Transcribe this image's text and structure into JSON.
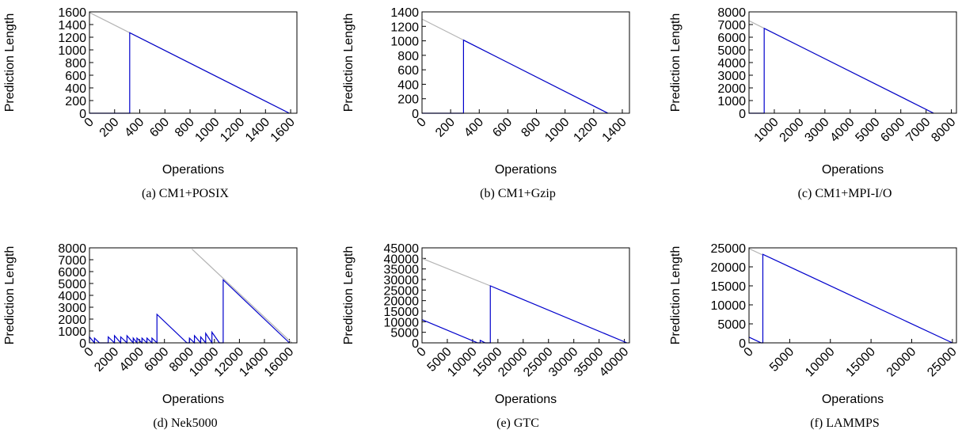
{
  "chart_data": [
    {
      "type": "line",
      "caption": "(a) CM1+POSIX",
      "xlabel": "Operations",
      "ylabel": "Prediction Length",
      "xlim": [
        0,
        1650
      ],
      "ylim": [
        0,
        1600
      ],
      "xticks": [
        0,
        200,
        400,
        600,
        800,
        1000,
        1200,
        1400,
        1600
      ],
      "yticks": [
        0,
        200,
        400,
        600,
        800,
        1000,
        1200,
        1400,
        1600
      ],
      "series": [
        {
          "color": "#b4b4b4",
          "x": [
            0,
            1590
          ],
          "values": [
            1590,
            0
          ]
        },
        {
          "color": "#0000cc",
          "x": [
            0,
            320,
            320,
            1590
          ],
          "values": [
            0,
            0,
            1270,
            0
          ]
        }
      ]
    },
    {
      "type": "line",
      "caption": "(b) CM1+Gzip",
      "xlabel": "Operations",
      "ylabel": "Prediction Length",
      "xlim": [
        0,
        1450
      ],
      "ylim": [
        0,
        1400
      ],
      "xticks": [
        0,
        200,
        400,
        600,
        800,
        1000,
        1200,
        1400
      ],
      "yticks": [
        0,
        200,
        400,
        600,
        800,
        1000,
        1200,
        1400
      ],
      "series": [
        {
          "color": "#b4b4b4",
          "x": [
            0,
            1300
          ],
          "values": [
            1300,
            0
          ]
        },
        {
          "color": "#0000cc",
          "x": [
            0,
            290,
            290,
            1300
          ],
          "values": [
            0,
            0,
            1010,
            0
          ]
        }
      ]
    },
    {
      "type": "line",
      "caption": "(c) CM1+MPI-I/O",
      "xlabel": "Operations",
      "ylabel": "Prediction Length",
      "xlim": [
        0,
        8200
      ],
      "ylim": [
        0,
        8000
      ],
      "xticks": [
        1000,
        2000,
        3000,
        4000,
        5000,
        6000,
        7000,
        8000
      ],
      "yticks": [
        0,
        1000,
        2000,
        3000,
        4000,
        5000,
        6000,
        7000,
        8000
      ],
      "series": [
        {
          "color": "#b4b4b4",
          "x": [
            0,
            7300
          ],
          "values": [
            7300,
            0
          ]
        },
        {
          "color": "#0000cc",
          "x": [
            0,
            600,
            600,
            7300
          ],
          "values": [
            0,
            0,
            6700,
            0
          ]
        }
      ]
    },
    {
      "type": "line",
      "caption": "(d) Nek5000",
      "xlabel": "Operations",
      "ylabel": "Prediction Length",
      "xlim": [
        0,
        16600
      ],
      "ylim": [
        0,
        8000
      ],
      "xticks": [
        0,
        2000,
        4000,
        6000,
        8000,
        10000,
        12000,
        14000,
        16000
      ],
      "yticks": [
        0,
        1000,
        2000,
        3000,
        4000,
        5000,
        6000,
        7000,
        8000
      ],
      "series": [
        {
          "color": "#b4b4b4",
          "x": [
            8200,
            16200
          ],
          "values": [
            7900,
            0
          ]
        },
        {
          "color": "#0000cc",
          "x": [
            0,
            0,
            400,
            400,
            800,
            1500,
            1500,
            2000,
            2000,
            2500,
            2500,
            3000,
            3000,
            3500,
            3500,
            3800,
            3800,
            4200,
            4200,
            4600,
            4600,
            5000,
            5000,
            5400,
            5400,
            7800,
            8000,
            8000,
            8400,
            8400,
            8900,
            8900,
            9300,
            9300,
            9800,
            9800,
            10400,
            10700,
            10700,
            16000
          ],
          "values": [
            0,
            500,
            0,
            400,
            0,
            0,
            500,
            0,
            600,
            0,
            500,
            0,
            600,
            0,
            400,
            0,
            400,
            0,
            400,
            0,
            400,
            0,
            400,
            0,
            2400,
            0,
            0,
            400,
            0,
            600,
            0,
            500,
            0,
            800,
            0,
            900,
            0,
            0,
            5300,
            0
          ]
        }
      ]
    },
    {
      "type": "line",
      "caption": "(e) GTC",
      "xlabel": "Operations",
      "ylabel": "Prediction Length",
      "xlim": [
        0,
        41000
      ],
      "ylim": [
        0,
        45000
      ],
      "xticks": [
        0,
        5000,
        10000,
        15000,
        20000,
        25000,
        30000,
        35000,
        40000
      ],
      "yticks": [
        0,
        5000,
        10000,
        15000,
        20000,
        25000,
        30000,
        35000,
        40000,
        45000
      ],
      "series": [
        {
          "color": "#b4b4b4",
          "x": [
            0,
            13500
          ],
          "values": [
            40000,
            27000
          ]
        },
        {
          "color": "#0000cc",
          "x": [
            0,
            11000,
            11500,
            11500,
            12500,
            13500,
            13500,
            40500
          ],
          "values": [
            11000,
            0,
            0,
            1200,
            0,
            0,
            27000,
            0
          ]
        }
      ]
    },
    {
      "type": "line",
      "caption": "(f) LAMMPS",
      "xlabel": "Operations",
      "ylabel": "Prediction Length",
      "xlim": [
        0,
        25500
      ],
      "ylim": [
        0,
        25000
      ],
      "xticks": [
        0,
        5000,
        10000,
        15000,
        20000,
        25000
      ],
      "yticks": [
        0,
        5000,
        10000,
        15000,
        20000,
        25000
      ],
      "series": [
        {
          "color": "#b4b4b4",
          "x": [
            0,
            1700
          ],
          "values": [
            24800,
            23100
          ]
        },
        {
          "color": "#0000cc",
          "x": [
            0,
            1500,
            1700,
            1700,
            25000
          ],
          "values": [
            1500,
            0,
            0,
            23300,
            0
          ]
        }
      ]
    }
  ]
}
